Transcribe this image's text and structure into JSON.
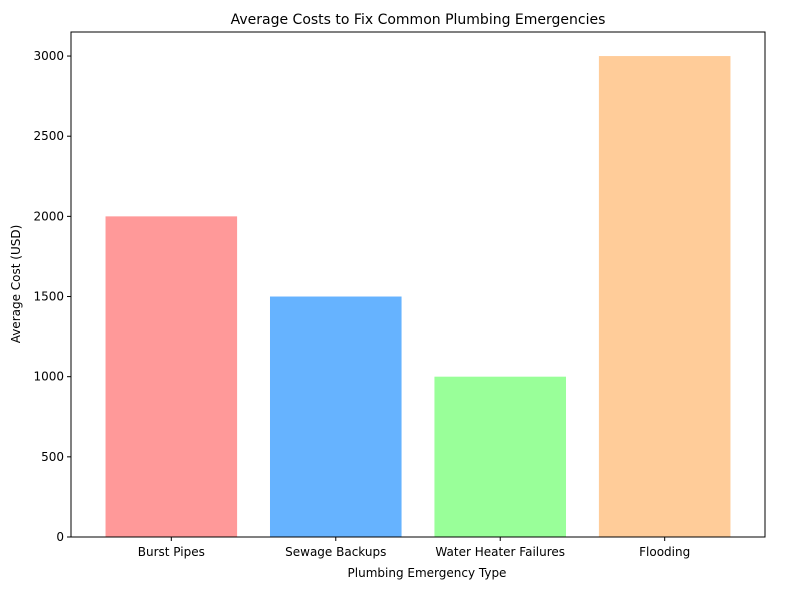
{
  "chart_data": {
    "type": "bar",
    "title": "Average Costs to Fix Common Plumbing Emergencies",
    "xlabel": "Plumbing Emergency Type",
    "ylabel": "Average Cost (USD)",
    "categories": [
      "Burst Pipes",
      "Sewage Backups",
      "Water Heater Failures",
      "Flooding"
    ],
    "values": [
      2000,
      1500,
      1000,
      3000
    ],
    "colors": [
      "#ff9999",
      "#66b3ff",
      "#99ff99",
      "#ffcc99"
    ],
    "ylim": [
      0,
      3150
    ],
    "yticks": [
      0,
      500,
      1000,
      1500,
      2000,
      2500,
      3000
    ],
    "grid": false,
    "legend": "none"
  }
}
